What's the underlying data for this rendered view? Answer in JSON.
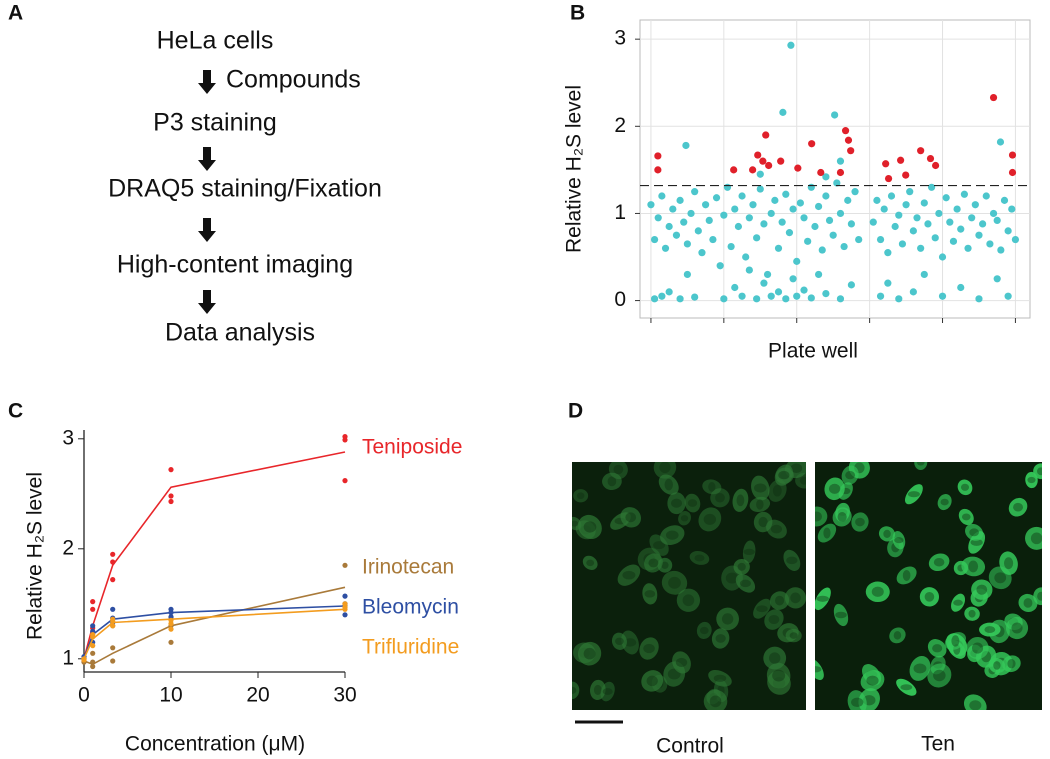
{
  "panel_labels": [
    "A",
    "B",
    "C",
    "D"
  ],
  "flowchart": {
    "steps": [
      "HeLa cells",
      "P3 staining",
      "DRAQ5 staining/Fixation",
      "High-content imaging",
      "Data analysis"
    ],
    "arrow_labels": [
      "Compounds"
    ]
  },
  "images": {
    "labels": [
      "Control",
      "Ten"
    ]
  },
  "chart_data": [
    {
      "type": "scatter",
      "y_label": "Relative H₂S level",
      "x_label": "Plate well",
      "ylim": [
        -0.2,
        3.22
      ],
      "yticks": [
        0,
        1,
        2,
        3
      ],
      "xlim": [
        -3,
        104
      ],
      "xticks": [
        0,
        20,
        40,
        60,
        80,
        100
      ],
      "grid": true,
      "threshold": 1.32,
      "series": [
        {
          "color": "#4cc6cc",
          "x": [
            0,
            1,
            2,
            3,
            4,
            5,
            6,
            7,
            8,
            9,
            10,
            11,
            12,
            13,
            14,
            15,
            16,
            17,
            18,
            19,
            20,
            21,
            22,
            23,
            24,
            25,
            26,
            27,
            28,
            29,
            30,
            31,
            32,
            33,
            34,
            35,
            36,
            37,
            38,
            39,
            40,
            41,
            42,
            43,
            44,
            45,
            46,
            47,
            48,
            49,
            50,
            51,
            52,
            53,
            54,
            55,
            56,
            57,
            61,
            62,
            63,
            64,
            65,
            66,
            67,
            68,
            69,
            70,
            71,
            72,
            73,
            74,
            75,
            76,
            77,
            78,
            79,
            80,
            81,
            82,
            83,
            84,
            85,
            86,
            87,
            88,
            89,
            90,
            91,
            92,
            93,
            94,
            95,
            96,
            97,
            98,
            99,
            100,
            1,
            3,
            5,
            8,
            10,
            12,
            20,
            23,
            25,
            27,
            29,
            31,
            33,
            35,
            37,
            39,
            40,
            42,
            44,
            46,
            48,
            52,
            55,
            63,
            65,
            68,
            72,
            75,
            80,
            85,
            90,
            95,
            98,
            38.4,
            36.2,
            50.4,
            9.6,
            95.9,
            52,
            48,
            30
          ],
          "values": [
            1.1,
            0.7,
            0.95,
            1.2,
            0.6,
            0.85,
            1.05,
            0.75,
            1.15,
            0.9,
            0.65,
            1.0,
            1.25,
            0.8,
            0.55,
            1.1,
            0.92,
            0.7,
            1.18,
            0.4,
            0.98,
            1.3,
            0.62,
            1.05,
            0.85,
            1.2,
            0.5,
            0.95,
            1.1,
            0.72,
            1.28,
            0.88,
            0.3,
            1.0,
            1.15,
            0.6,
            0.9,
            1.22,
            0.78,
            1.05,
            0.45,
            1.12,
            0.95,
            0.68,
            1.3,
            0.85,
            1.08,
            0.58,
            1.2,
            0.92,
            0.75,
            1.35,
            1.0,
            0.62,
            1.15,
            0.88,
            1.25,
            0.7,
            0.9,
            1.15,
            0.7,
            1.05,
            0.55,
            1.2,
            0.85,
            0.98,
            0.65,
            1.1,
            1.25,
            0.8,
            0.95,
            0.6,
            1.12,
            0.88,
            1.3,
            0.72,
            1.0,
            0.5,
            1.18,
            0.9,
            0.68,
            1.05,
            0.82,
            1.22,
            0.6,
            0.95,
            1.1,
            0.75,
            0.88,
            1.2,
            0.65,
            1.0,
            0.92,
            0.58,
            1.15,
            0.8,
            1.05,
            0.7,
            0.02,
            0.05,
            0.1,
            0.02,
            0.3,
            0.04,
            0.02,
            0.15,
            0.05,
            0.35,
            0.02,
            0.2,
            0.05,
            0.1,
            0.02,
            0.25,
            0.05,
            0.12,
            0.03,
            0.3,
            0.08,
            0.02,
            0.18,
            0.05,
            0.2,
            0.02,
            0.1,
            0.3,
            0.05,
            0.15,
            0.02,
            0.25,
            0.05,
            2.93,
            2.16,
            2.13,
            1.78,
            1.82,
            1.6,
            1.42,
            1.45
          ]
        },
        {
          "color": "#e0202a",
          "x": [
            1.9,
            1.9,
            22.7,
            27.9,
            29.3,
            31.5,
            30.7,
            32.3,
            35.6,
            40.3,
            44.1,
            46.6,
            53.4,
            54.2,
            54.8,
            52,
            64.4,
            68.5,
            65.2,
            74,
            76.7,
            78.1,
            69.9,
            94,
            99.2,
            99.2
          ],
          "values": [
            1.66,
            1.5,
            1.5,
            1.5,
            1.67,
            1.9,
            1.6,
            1.55,
            1.6,
            1.52,
            1.8,
            1.47,
            1.95,
            1.84,
            1.72,
            1.47,
            1.57,
            1.61,
            1.4,
            1.72,
            1.63,
            1.55,
            1.44,
            2.33,
            1.67,
            1.47
          ]
        }
      ]
    },
    {
      "type": "line",
      "y_label": "Relative H₂S level",
      "x_label": "Concentration (μM)",
      "xlim": [
        0,
        30
      ],
      "xticks": [
        0,
        10,
        20,
        30
      ],
      "ylim": [
        0.88,
        3.08
      ],
      "yticks": [
        1,
        2,
        3
      ],
      "series": [
        {
          "name": "Teniposide",
          "color": "#e8262a",
          "x": [
            0,
            1,
            3.3,
            10,
            30
          ],
          "values": [
            1.0,
            1.3,
            1.85,
            2.56,
            2.88
          ],
          "replicates": {
            "x": [
              0,
              0,
              1,
              1,
              1,
              3.3,
              3.3,
              3.3,
              10,
              10,
              10,
              30,
              30,
              30
            ],
            "values": [
              1.0,
              0.98,
              1.52,
              1.45,
              1.28,
              1.95,
              1.88,
              1.72,
              2.72,
              2.48,
              2.43,
              3.02,
              2.99,
              2.62
            ]
          }
        },
        {
          "name": "Irinotecan",
          "color": "#a97a3a",
          "x": [
            0,
            1,
            3.3,
            10,
            30
          ],
          "values": [
            0.98,
            0.95,
            1.05,
            1.3,
            1.65
          ],
          "replicates": {
            "x": [
              0,
              0,
              1,
              1,
              1,
              3.3,
              3.3,
              3.3,
              10,
              10,
              10,
              30,
              30,
              30
            ],
            "values": [
              1.0,
              0.97,
              0.93,
              0.97,
              1.05,
              0.98,
              1.1,
              1.3,
              1.15,
              1.3,
              1.38,
              1.85,
              1.5,
              1.48
            ]
          }
        },
        {
          "name": "Bleomycin",
          "color": "#2e4fa3",
          "x": [
            0,
            1,
            3.3,
            10,
            30
          ],
          "values": [
            1.0,
            1.22,
            1.36,
            1.42,
            1.48
          ],
          "replicates": {
            "x": [
              0,
              0,
              1,
              1,
              1,
              3.3,
              3.3,
              3.3,
              10,
              10,
              10,
              30,
              30,
              30
            ],
            "values": [
              1.0,
              1.02,
              1.15,
              1.25,
              1.3,
              1.33,
              1.37,
              1.45,
              1.38,
              1.42,
              1.45,
              1.4,
              1.5,
              1.57
            ]
          }
        },
        {
          "name": "Trifluridine",
          "color": "#f39c1f",
          "x": [
            0,
            1,
            3.3,
            10,
            30
          ],
          "values": [
            1.0,
            1.18,
            1.33,
            1.36,
            1.45
          ],
          "replicates": {
            "x": [
              0,
              0,
              1,
              1,
              1,
              3.3,
              3.3,
              3.3,
              10,
              10,
              10,
              30,
              30,
              30
            ],
            "values": [
              1.0,
              0.99,
              1.12,
              1.2,
              1.22,
              1.3,
              1.34,
              1.36,
              1.27,
              1.32,
              1.35,
              1.45,
              1.47,
              1.5
            ]
          }
        }
      ]
    }
  ]
}
